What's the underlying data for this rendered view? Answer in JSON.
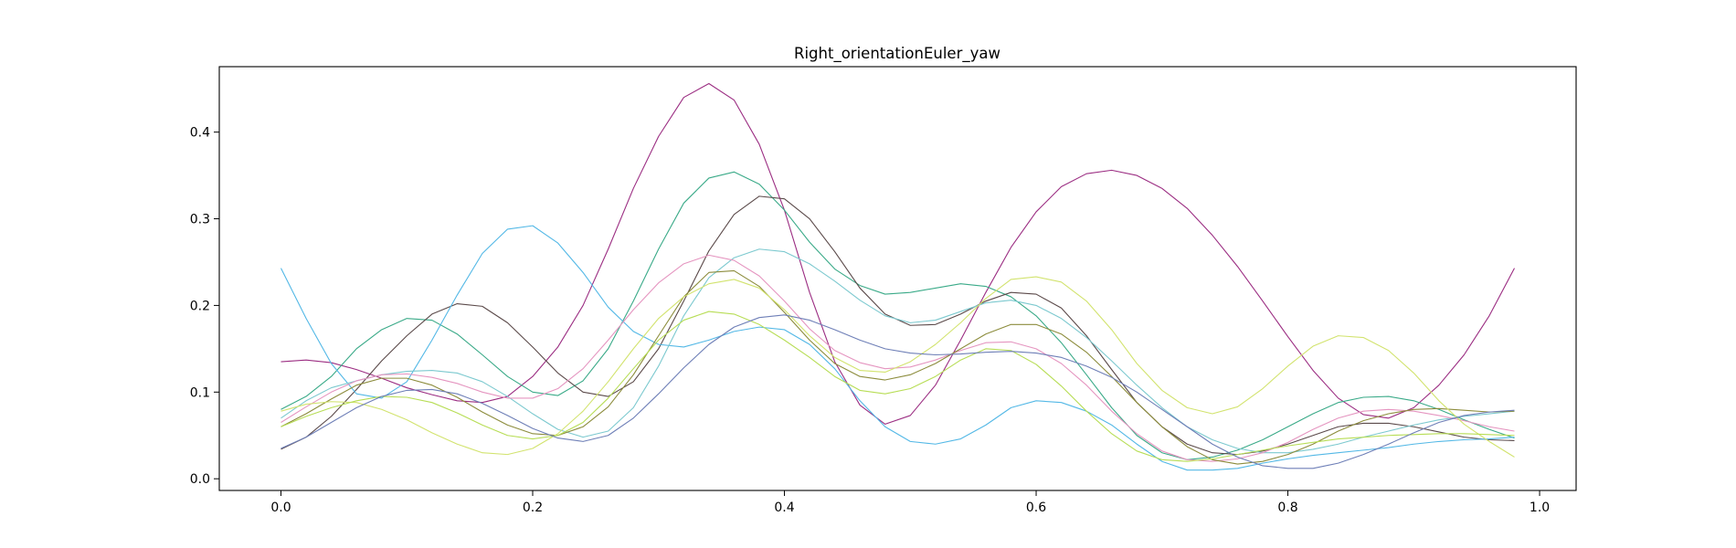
{
  "chart_data": {
    "type": "line",
    "title": "Right_orientationEuler_yaw",
    "xlabel": "",
    "ylabel": "",
    "xlim": [
      -0.049,
      1.029
    ],
    "ylim": [
      -0.0135,
      0.4755
    ],
    "xticks": [
      "0.0",
      "0.2",
      "0.4",
      "0.6",
      "0.8",
      "1.0"
    ],
    "yticks": [
      "0.0",
      "0.1",
      "0.2",
      "0.3",
      "0.4"
    ],
    "grid": false,
    "legend": "none",
    "x": [
      0.0,
      0.02,
      0.04,
      0.06,
      0.08,
      0.1,
      0.12,
      0.14,
      0.16,
      0.18,
      0.2,
      0.22,
      0.24,
      0.26,
      0.28,
      0.3,
      0.32,
      0.34,
      0.36,
      0.38,
      0.4,
      0.42,
      0.44,
      0.46,
      0.48,
      0.5,
      0.52,
      0.54,
      0.56,
      0.58,
      0.6,
      0.62,
      0.64,
      0.66,
      0.68,
      0.7,
      0.72,
      0.74,
      0.76,
      0.78,
      0.8,
      0.82,
      0.84,
      0.86,
      0.88,
      0.9,
      0.92,
      0.94,
      0.96,
      0.98
    ],
    "series": [
      {
        "color": "#9b2d82",
        "values": [
          0.135,
          0.137,
          0.134,
          0.126,
          0.116,
          0.105,
          0.097,
          0.09,
          0.088,
          0.095,
          0.118,
          0.152,
          0.2,
          0.265,
          0.335,
          0.395,
          0.44,
          0.456,
          0.437,
          0.386,
          0.31,
          0.215,
          0.135,
          0.085,
          0.063,
          0.073,
          0.108,
          0.16,
          0.215,
          0.267,
          0.308,
          0.337,
          0.352,
          0.356,
          0.35,
          0.335,
          0.312,
          0.281,
          0.245,
          0.205,
          0.164,
          0.125,
          0.093,
          0.074,
          0.07,
          0.082,
          0.108,
          0.143,
          0.188,
          0.243
        ]
      },
      {
        "color": "#3aaa88",
        "values": [
          0.08,
          0.095,
          0.118,
          0.15,
          0.172,
          0.185,
          0.183,
          0.167,
          0.143,
          0.118,
          0.1,
          0.096,
          0.113,
          0.15,
          0.205,
          0.265,
          0.318,
          0.347,
          0.354,
          0.34,
          0.31,
          0.273,
          0.242,
          0.223,
          0.213,
          0.215,
          0.22,
          0.225,
          0.222,
          0.21,
          0.188,
          0.157,
          0.12,
          0.082,
          0.05,
          0.03,
          0.022,
          0.025,
          0.033,
          0.045,
          0.06,
          0.075,
          0.088,
          0.094,
          0.095,
          0.09,
          0.08,
          0.068,
          0.057,
          0.047
        ]
      },
      {
        "color": "#5b4a4a",
        "values": [
          0.034,
          0.048,
          0.072,
          0.103,
          0.136,
          0.165,
          0.19,
          0.202,
          0.199,
          0.18,
          0.152,
          0.122,
          0.1,
          0.095,
          0.112,
          0.15,
          0.205,
          0.263,
          0.305,
          0.326,
          0.323,
          0.3,
          0.262,
          0.22,
          0.19,
          0.177,
          0.178,
          0.19,
          0.205,
          0.215,
          0.213,
          0.197,
          0.165,
          0.126,
          0.088,
          0.06,
          0.04,
          0.03,
          0.028,
          0.032,
          0.04,
          0.05,
          0.06,
          0.064,
          0.064,
          0.06,
          0.054,
          0.048,
          0.045,
          0.044
        ]
      },
      {
        "color": "#53b8e6",
        "values": [
          0.243,
          0.185,
          0.133,
          0.098,
          0.093,
          0.112,
          0.16,
          0.212,
          0.26,
          0.288,
          0.292,
          0.272,
          0.238,
          0.198,
          0.17,
          0.155,
          0.152,
          0.16,
          0.17,
          0.175,
          0.172,
          0.155,
          0.127,
          0.09,
          0.06,
          0.043,
          0.04,
          0.046,
          0.062,
          0.082,
          0.09,
          0.088,
          0.078,
          0.062,
          0.04,
          0.02,
          0.01,
          0.01,
          0.012,
          0.018,
          0.023,
          0.027,
          0.03,
          0.033,
          0.036,
          0.04,
          0.043,
          0.045,
          0.046,
          0.048
        ]
      },
      {
        "color": "#7cc9cf",
        "values": [
          0.07,
          0.09,
          0.105,
          0.113,
          0.12,
          0.124,
          0.125,
          0.122,
          0.112,
          0.095,
          0.075,
          0.057,
          0.048,
          0.055,
          0.082,
          0.13,
          0.188,
          0.232,
          0.255,
          0.265,
          0.262,
          0.248,
          0.228,
          0.206,
          0.188,
          0.18,
          0.183,
          0.193,
          0.203,
          0.206,
          0.2,
          0.185,
          0.163,
          0.136,
          0.108,
          0.082,
          0.06,
          0.045,
          0.035,
          0.03,
          0.03,
          0.034,
          0.04,
          0.048,
          0.055,
          0.062,
          0.068,
          0.072,
          0.075,
          0.078
        ]
      },
      {
        "color": "#e595c0",
        "values": [
          0.065,
          0.083,
          0.1,
          0.113,
          0.12,
          0.121,
          0.117,
          0.11,
          0.1,
          0.093,
          0.093,
          0.104,
          0.127,
          0.16,
          0.195,
          0.226,
          0.248,
          0.258,
          0.252,
          0.234,
          0.205,
          0.173,
          0.148,
          0.134,
          0.127,
          0.129,
          0.137,
          0.148,
          0.157,
          0.158,
          0.15,
          0.133,
          0.108,
          0.078,
          0.052,
          0.032,
          0.022,
          0.02,
          0.023,
          0.03,
          0.042,
          0.057,
          0.07,
          0.078,
          0.08,
          0.078,
          0.073,
          0.067,
          0.06,
          0.055
        ]
      },
      {
        "color": "#8c8c3c",
        "values": [
          0.06,
          0.075,
          0.092,
          0.108,
          0.116,
          0.116,
          0.108,
          0.094,
          0.077,
          0.062,
          0.052,
          0.05,
          0.06,
          0.083,
          0.12,
          0.165,
          0.21,
          0.238,
          0.24,
          0.222,
          0.192,
          0.16,
          0.133,
          0.118,
          0.114,
          0.12,
          0.133,
          0.15,
          0.167,
          0.178,
          0.178,
          0.167,
          0.146,
          0.118,
          0.088,
          0.06,
          0.037,
          0.022,
          0.017,
          0.02,
          0.028,
          0.04,
          0.055,
          0.067,
          0.075,
          0.08,
          0.081,
          0.079,
          0.077,
          0.078
        ]
      },
      {
        "color": "#d2e36e",
        "values": [
          0.078,
          0.086,
          0.089,
          0.088,
          0.08,
          0.068,
          0.053,
          0.04,
          0.03,
          0.028,
          0.035,
          0.052,
          0.078,
          0.112,
          0.15,
          0.185,
          0.21,
          0.225,
          0.23,
          0.22,
          0.195,
          0.165,
          0.14,
          0.125,
          0.123,
          0.135,
          0.155,
          0.18,
          0.208,
          0.23,
          0.233,
          0.227,
          0.205,
          0.172,
          0.133,
          0.102,
          0.082,
          0.075,
          0.083,
          0.104,
          0.13,
          0.153,
          0.165,
          0.163,
          0.148,
          0.122,
          0.09,
          0.063,
          0.043,
          0.025
        ]
      },
      {
        "color": "#b7dd55",
        "values": [
          0.06,
          0.072,
          0.082,
          0.09,
          0.095,
          0.094,
          0.088,
          0.076,
          0.062,
          0.05,
          0.046,
          0.05,
          0.065,
          0.093,
          0.127,
          0.16,
          0.183,
          0.193,
          0.19,
          0.178,
          0.16,
          0.14,
          0.118,
          0.102,
          0.098,
          0.104,
          0.118,
          0.137,
          0.15,
          0.148,
          0.132,
          0.107,
          0.078,
          0.052,
          0.032,
          0.022,
          0.02,
          0.023,
          0.028,
          0.033,
          0.038,
          0.042,
          0.046,
          0.048,
          0.05,
          0.051,
          0.052,
          0.052,
          0.051,
          0.05
        ]
      },
      {
        "color": "#6e7fb7",
        "values": [
          0.035,
          0.048,
          0.065,
          0.082,
          0.095,
          0.102,
          0.103,
          0.098,
          0.087,
          0.073,
          0.058,
          0.047,
          0.043,
          0.05,
          0.07,
          0.098,
          0.128,
          0.155,
          0.175,
          0.186,
          0.189,
          0.183,
          0.172,
          0.16,
          0.15,
          0.145,
          0.143,
          0.144,
          0.146,
          0.147,
          0.145,
          0.14,
          0.13,
          0.117,
          0.1,
          0.08,
          0.06,
          0.04,
          0.025,
          0.015,
          0.012,
          0.012,
          0.018,
          0.028,
          0.04,
          0.053,
          0.065,
          0.073,
          0.077,
          0.079
        ]
      }
    ]
  }
}
